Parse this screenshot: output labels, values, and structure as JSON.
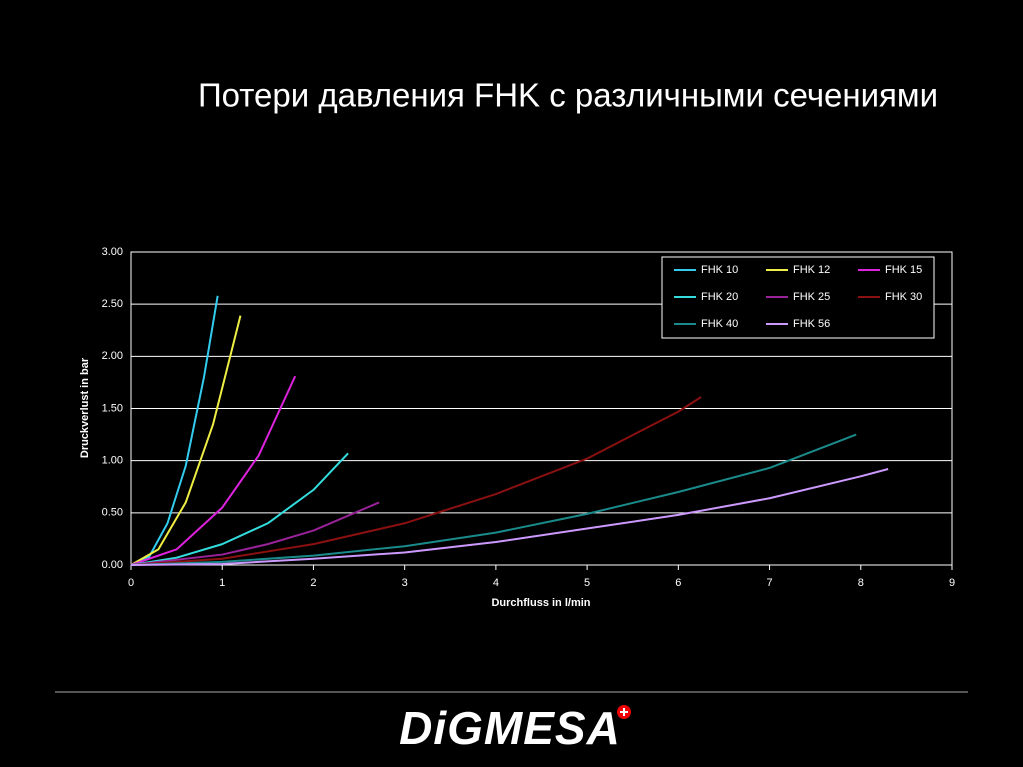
{
  "title": "Потери давления FHK с различными сечениями",
  "logo": "DiGMESA",
  "chart_data": {
    "type": "line",
    "xlabel": "Durchfluss in l/min",
    "ylabel": "Druckverlust in bar",
    "xlim": [
      0,
      9
    ],
    "xticks": [
      0,
      1,
      2,
      3,
      4,
      5,
      6,
      7,
      8,
      9
    ],
    "ylim": [
      0,
      3
    ],
    "yticks": [
      {
        "value": 0,
        "label": "0.00"
      },
      {
        "value": 0.5,
        "label": "0.50"
      },
      {
        "value": 1,
        "label": "1.00"
      },
      {
        "value": 1.5,
        "label": "1.50"
      },
      {
        "value": 2,
        "label": "2.00"
      },
      {
        "value": 2.5,
        "label": "2.50"
      },
      {
        "value": 3,
        "label": "3.00"
      }
    ],
    "grid": true,
    "legend": "upper right",
    "series": [
      {
        "name": "FHK 10",
        "color": "#33ccee",
        "x": [
          0,
          0.2,
          0.4,
          0.6,
          0.8,
          0.95
        ],
        "values": [
          0,
          0.08,
          0.4,
          0.95,
          1.8,
          2.58
        ]
      },
      {
        "name": "FHK 12",
        "color": "#eeee44",
        "x": [
          0,
          0.3,
          0.6,
          0.9,
          1.2
        ],
        "values": [
          0,
          0.15,
          0.6,
          1.35,
          2.39
        ]
      },
      {
        "name": "FHK 15",
        "color": "#dd22dd",
        "x": [
          0,
          0.5,
          1.0,
          1.4,
          1.8
        ],
        "values": [
          0,
          0.15,
          0.55,
          1.05,
          1.81
        ]
      },
      {
        "name": "FHK 20",
        "color": "#33dddd",
        "x": [
          0,
          0.5,
          1.0,
          1.5,
          2.0,
          2.38
        ],
        "values": [
          0,
          0.07,
          0.2,
          0.4,
          0.72,
          1.07
        ]
      },
      {
        "name": "FHK 25",
        "color": "#992299",
        "x": [
          0,
          1,
          1.5,
          2,
          2.72
        ],
        "values": [
          0,
          0.1,
          0.2,
          0.33,
          0.6
        ]
      },
      {
        "name": "FHK 30",
        "color": "#8b1010",
        "x": [
          0,
          1,
          2,
          3,
          4,
          5,
          6,
          6.25
        ],
        "values": [
          0,
          0.06,
          0.2,
          0.4,
          0.68,
          1.02,
          1.47,
          1.61
        ]
      },
      {
        "name": "FHK 40",
        "color": "#1a8a8a",
        "x": [
          0,
          1,
          2,
          3,
          4,
          5,
          6,
          7,
          7.95
        ],
        "values": [
          0,
          0.03,
          0.09,
          0.18,
          0.31,
          0.49,
          0.7,
          0.93,
          1.25
        ]
      },
      {
        "name": "FHK 56",
        "color": "#cc99ff",
        "x": [
          0,
          1,
          2,
          3,
          4,
          5,
          6,
          7,
          8,
          8.3
        ],
        "values": [
          0,
          0.01,
          0.06,
          0.12,
          0.22,
          0.35,
          0.48,
          0.64,
          0.85,
          0.92
        ]
      }
    ]
  }
}
